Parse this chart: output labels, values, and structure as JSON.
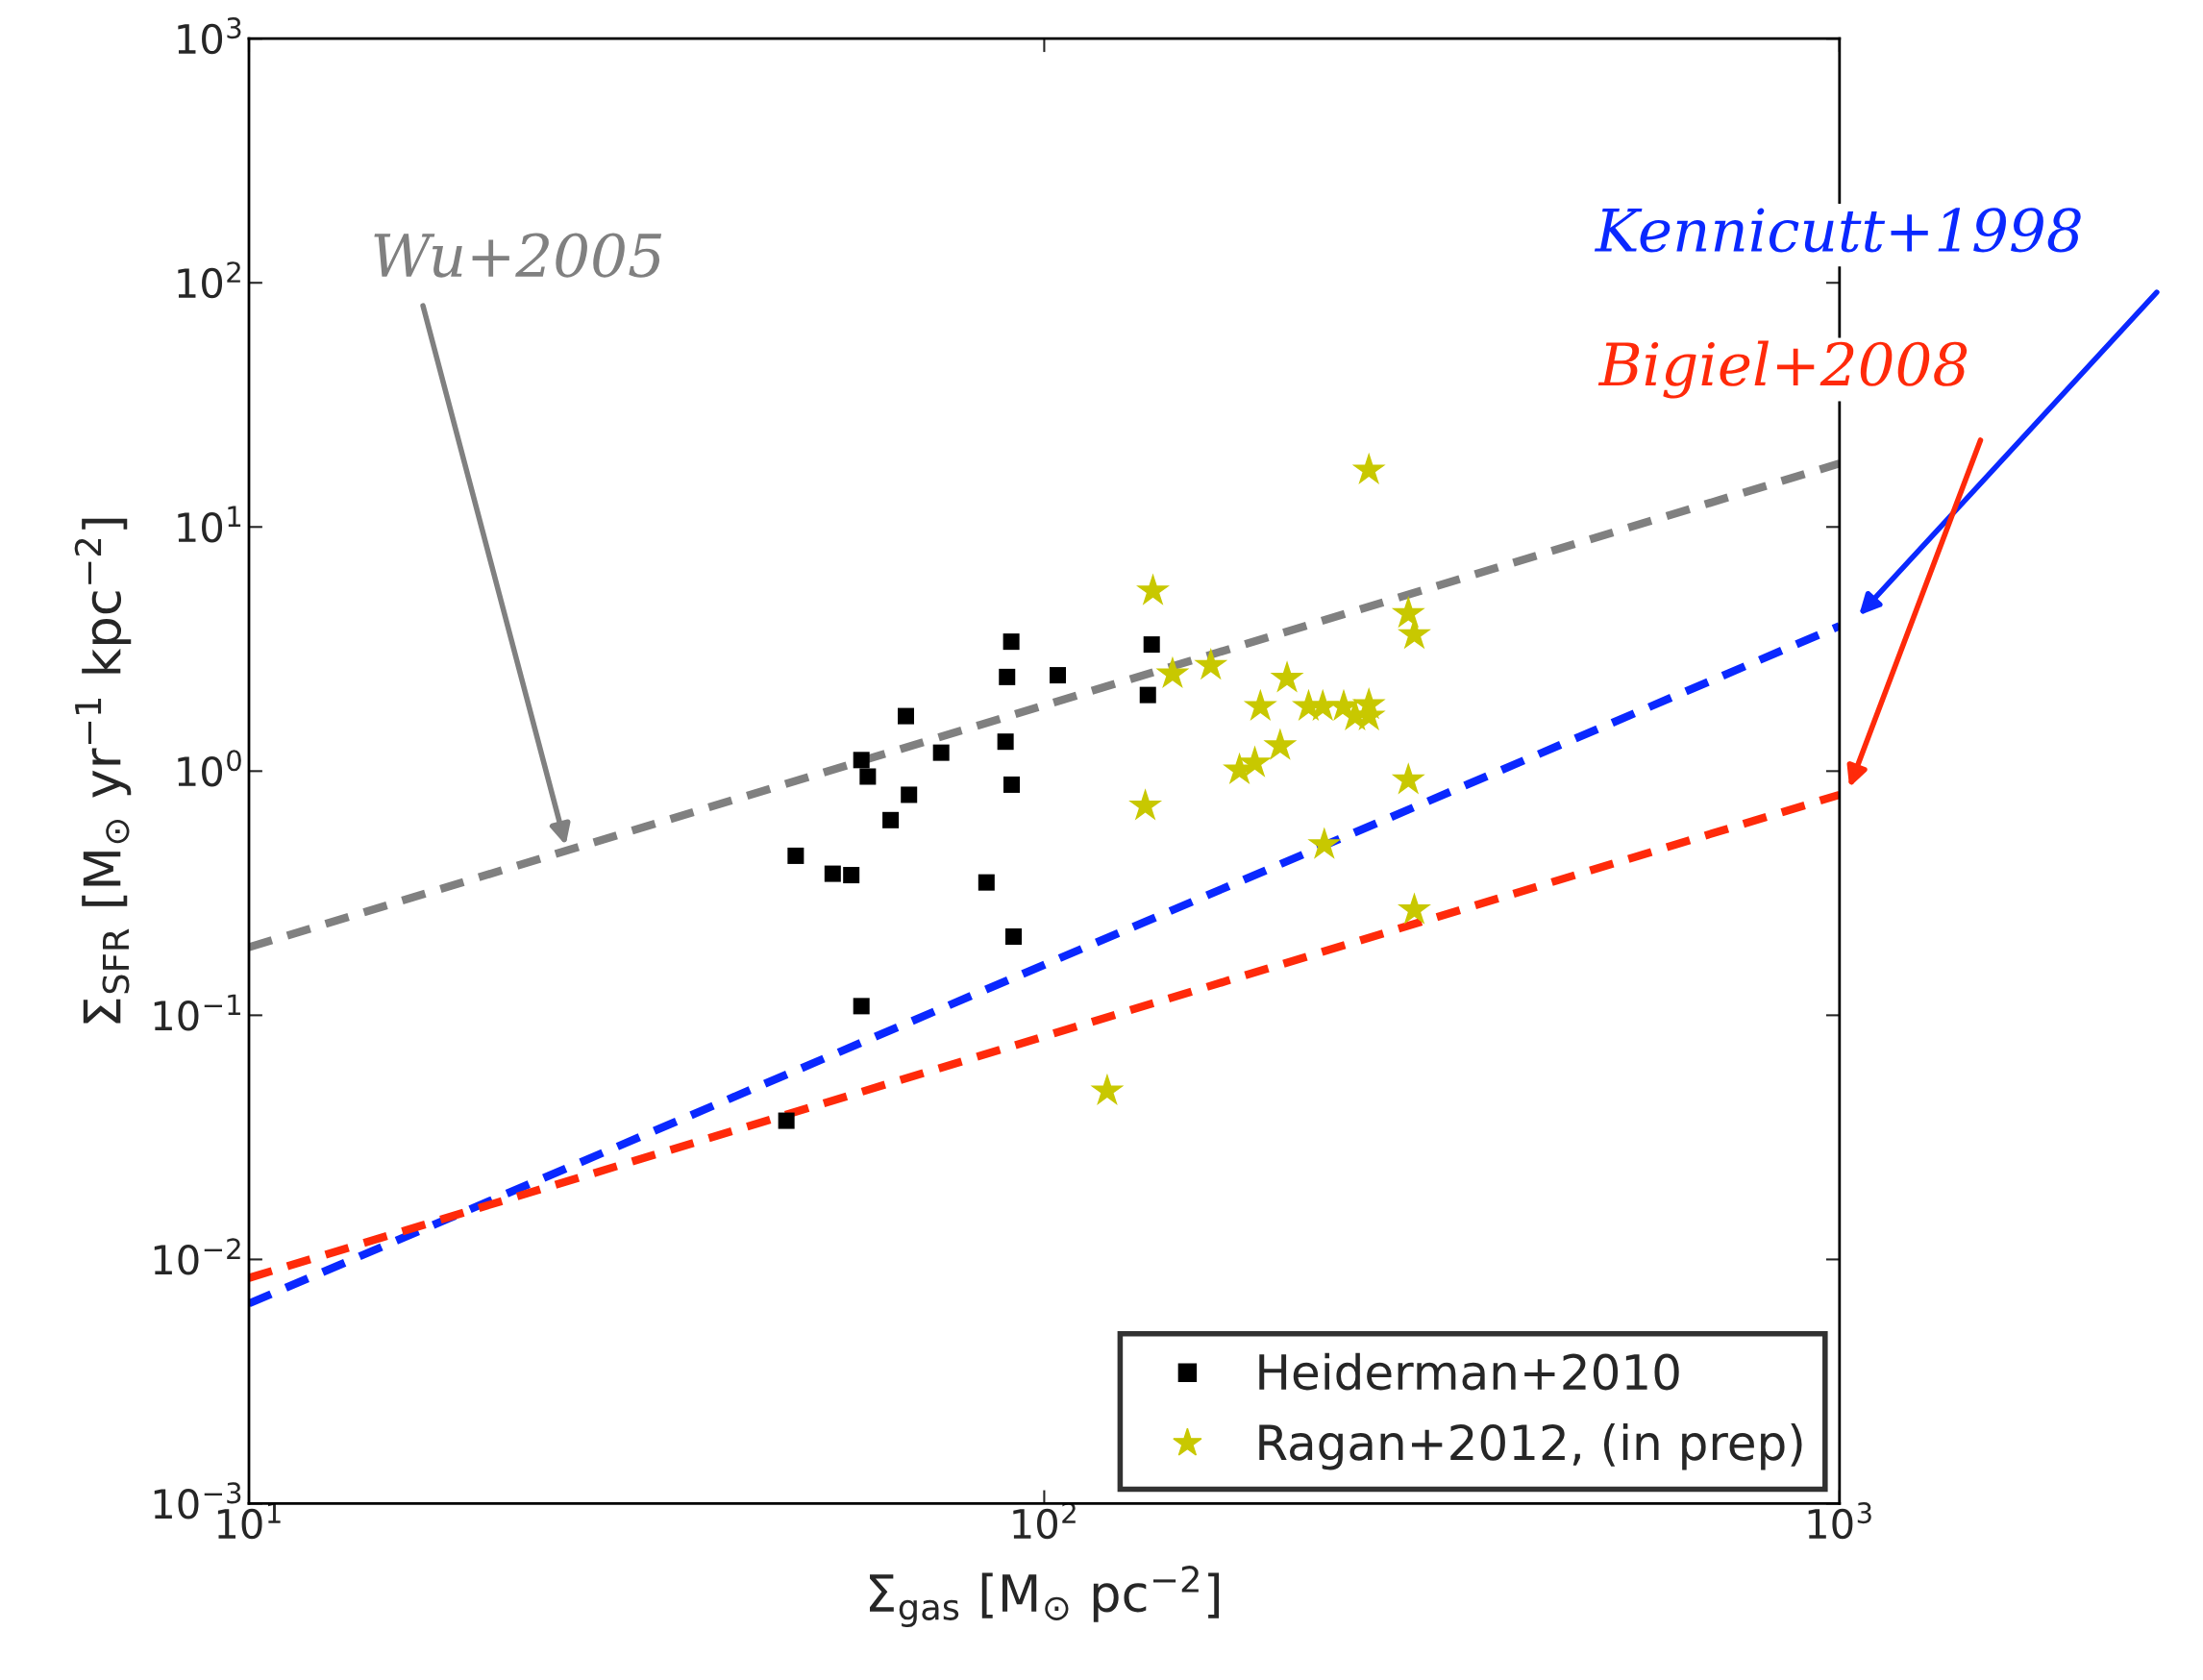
{
  "chart_data": {
    "type": "scatter",
    "xlabel": "Σ$_{gas}$ [M$_{⊙}$ pc$^{−2}$]",
    "ylabel": "Σ$_{SFR}$ [M$_{⊙}$ yr$^{−1}$ kpc$^{−2}$]",
    "log": "xy",
    "xlim": [
      10,
      1000
    ],
    "ylim": [
      0.001,
      1000
    ],
    "xticks": [
      {
        "value": 10,
        "label": "10$^{1}$"
      },
      {
        "value": 100,
        "label": "10$^{2}$"
      },
      {
        "value": 1000,
        "label": "10$^{3}$"
      }
    ],
    "yticks": [
      {
        "value": 0.001,
        "label": "10$^{−3}$"
      },
      {
        "value": 0.01,
        "label": "10$^{−2}$"
      },
      {
        "value": 0.1,
        "label": "10$^{−1}$"
      },
      {
        "value": 1,
        "label": "10$^{0}$"
      },
      {
        "value": 10,
        "label": "10$^{1}$"
      },
      {
        "value": 100,
        "label": "10$^{2}$"
      },
      {
        "value": 1000,
        "label": "10$^{3}$"
      }
    ],
    "grid": false,
    "legend": "bottom right",
    "series": [
      {
        "type": "line",
        "color": "#808080",
        "line_style": "dashed",
        "marker": "none",
        "x": [
          10,
          1000
        ],
        "values": [
          0.19,
          18.2
        ]
      },
      {
        "type": "line",
        "color": "#0a28ff",
        "line_style": "dashed",
        "marker": "none",
        "x": [
          10,
          1000
        ],
        "values": [
          0.0066,
          3.93
        ]
      },
      {
        "type": "line",
        "color": "#ff2a0a",
        "line_style": "dashed",
        "marker": "none",
        "x": [
          10,
          1000
        ],
        "values": [
          0.0084,
          0.8
        ]
      },
      {
        "name": "Heiderman+2010",
        "color": "#000000",
        "marker": "square",
        "x": [
          47.4,
          48.7,
          54.2,
          57.2,
          58.9,
          60,
          58.9,
          64.1,
          67,
          67.6,
          74.2,
          84.6,
          89.4,
          89.8,
          90.9,
          91,
          91.5,
          104,
          135,
          136.5
        ],
        "values": [
          0.037,
          0.45,
          0.38,
          0.375,
          1.11,
          0.95,
          0.109,
          0.63,
          1.68,
          0.8,
          1.19,
          0.35,
          1.32,
          2.43,
          3.39,
          0.88,
          0.21,
          2.47,
          2.05,
          3.3
        ]
      },
      {
        "name": "Ragan+2012, (in prep)",
        "color": "#c8c800",
        "marker": "star",
        "x": [
          256,
          137,
          145,
          162,
          134,
          120,
          176,
          184,
          187,
          198,
          202,
          215,
          224,
          225,
          238,
          246,
          256,
          256,
          287,
          292,
          287,
          292
        ],
        "values": [
          17.1,
          5.47,
          2.5,
          2.71,
          0.72,
          0.049,
          1.01,
          1.08,
          1.84,
          1.27,
          2.4,
          1.84,
          1.84,
          0.5,
          1.84,
          1.68,
          1.87,
          1.68,
          4.42,
          3.62,
          0.92,
          0.27
        ]
      }
    ],
    "annotations": [
      "Wu+2005",
      "Kennicutt+1998",
      "Bigiel+2008"
    ]
  }
}
